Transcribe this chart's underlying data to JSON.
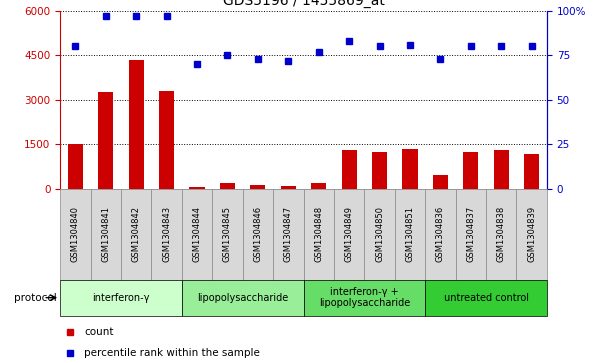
{
  "title": "GDS5196 / 1455869_at",
  "samples": [
    "GSM1304840",
    "GSM1304841",
    "GSM1304842",
    "GSM1304843",
    "GSM1304844",
    "GSM1304845",
    "GSM1304846",
    "GSM1304847",
    "GSM1304848",
    "GSM1304849",
    "GSM1304850",
    "GSM1304851",
    "GSM1304836",
    "GSM1304837",
    "GSM1304838",
    "GSM1304839"
  ],
  "counts": [
    1500,
    3250,
    4350,
    3300,
    75,
    200,
    130,
    100,
    200,
    1300,
    1230,
    1350,
    450,
    1250,
    1300,
    1180
  ],
  "percentile": [
    80,
    97,
    97,
    97,
    70,
    75,
    73,
    72,
    77,
    83,
    80,
    81,
    73,
    80,
    80,
    80
  ],
  "ylim_left": [
    0,
    6000
  ],
  "ylim_right": [
    0,
    100
  ],
  "yticks_left": [
    0,
    1500,
    3000,
    4500,
    6000
  ],
  "yticks_right": [
    0,
    25,
    50,
    75,
    100
  ],
  "ytick_labels_left": [
    "0",
    "1500",
    "3000",
    "4500",
    "6000"
  ],
  "ytick_labels_right": [
    "0",
    "25",
    "50",
    "75",
    "100%"
  ],
  "groups": [
    {
      "label": "interferon-γ",
      "start": 0,
      "end": 4,
      "color": "#ccffcc"
    },
    {
      "label": "lipopolysaccharide",
      "start": 4,
      "end": 8,
      "color": "#99ee99"
    },
    {
      "label": "interferon-γ +\nlipopolysaccharide",
      "start": 8,
      "end": 12,
      "color": "#66dd66"
    },
    {
      "label": "untreated control",
      "start": 12,
      "end": 16,
      "color": "#33cc33"
    }
  ],
  "bar_color": "#cc0000",
  "dot_color": "#0000cc",
  "bar_width": 0.5,
  "cell_bg": "#d8d8d8",
  "cell_border": "#888888",
  "protocol_label": "protocol",
  "legend_count_label": "count",
  "legend_percentile_label": "percentile rank within the sample"
}
